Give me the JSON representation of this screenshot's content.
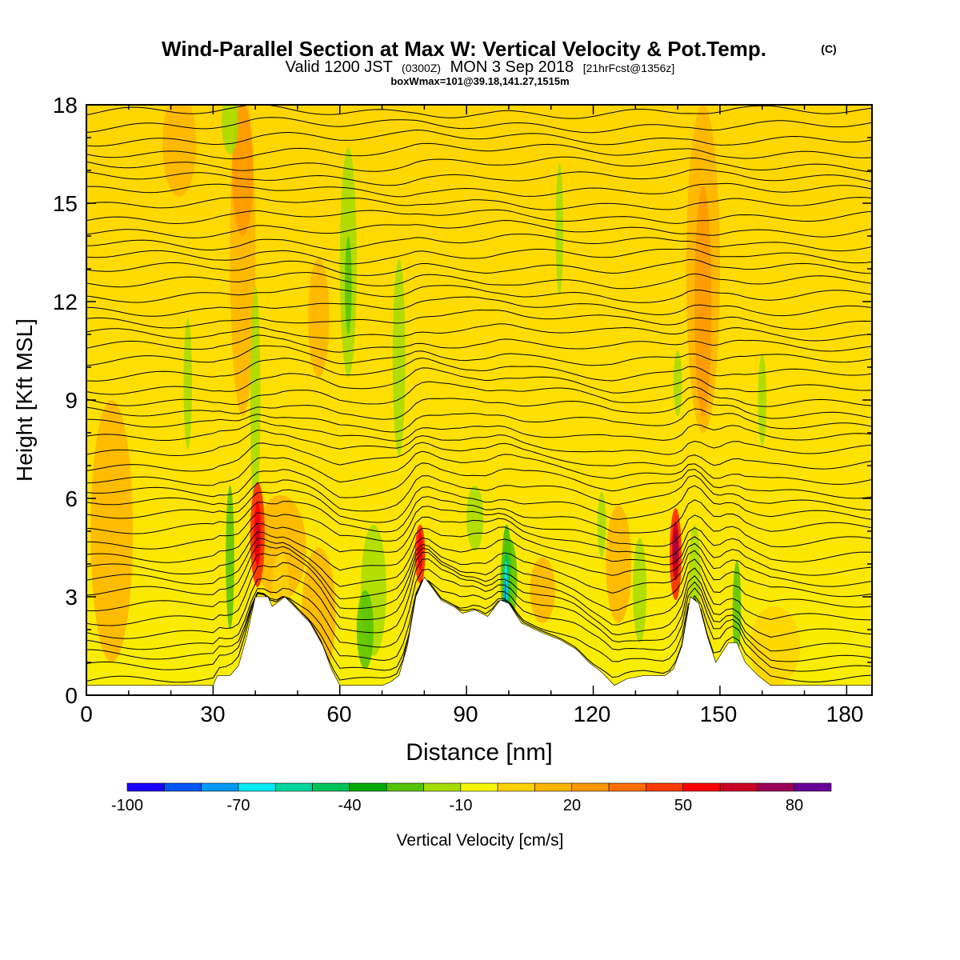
{
  "chart_data": {
    "type": "heatmap",
    "title": "Wind-Parallel Section at Max W: Vertical Velocity & Pot.Temp.",
    "title_mark": "(C)",
    "subtitle": {
      "prefix": "Valid 1200 JST",
      "utc": "(0300Z)",
      "date": "MON 3 Sep 2018",
      "fcst": "[21hrFcst@1356z]"
    },
    "boxline": "boxWmax=101@39.18,141.27,1515m",
    "xlabel": "Distance [nm]",
    "ylabel": "Height [Kft MSL]",
    "xlim": [
      0,
      186
    ],
    "ylim": [
      0,
      18
    ],
    "x_ticks": [
      "0",
      "30",
      "60",
      "90",
      "120",
      "150",
      "180"
    ],
    "y_ticks": [
      "0",
      "3",
      "6",
      "9",
      "12",
      "15",
      "18"
    ],
    "colorbar": {
      "label": "Vertical Velocity [cm/s]",
      "tick_labels": [
        "-100",
        "-70",
        "-40",
        "-10",
        "20",
        "50",
        "80"
      ],
      "colors": [
        "#1a00ff",
        "#0055f5",
        "#0099f5",
        "#00eaf5",
        "#00d59c",
        "#00c35a",
        "#00aa00",
        "#55c300",
        "#a5dc00",
        "#f5f500",
        "#ffd200",
        "#ffb400",
        "#ff9600",
        "#ff6e00",
        "#ff3c00",
        "#ff0000",
        "#cc0022",
        "#990055",
        "#660099"
      ]
    },
    "terrain_kft": [
      [
        0,
        0.3
      ],
      [
        30,
        0.3
      ],
      [
        31,
        0.6
      ],
      [
        34,
        0.6
      ],
      [
        36,
        0.9
      ],
      [
        38,
        1.8
      ],
      [
        40,
        3.0
      ],
      [
        43,
        3.0
      ],
      [
        44,
        2.7
      ],
      [
        47,
        3.0
      ],
      [
        50,
        2.6
      ],
      [
        53,
        2.2
      ],
      [
        56,
        1.5
      ],
      [
        58,
        0.8
      ],
      [
        60,
        0.3
      ],
      [
        64,
        0.3
      ],
      [
        66,
        0.3
      ],
      [
        70,
        0.3
      ],
      [
        72,
        0.4
      ],
      [
        74,
        0.6
      ],
      [
        76,
        1.5
      ],
      [
        78,
        3.0
      ],
      [
        80,
        3.6
      ],
      [
        84,
        2.9
      ],
      [
        87,
        2.7
      ],
      [
        89,
        2.5
      ],
      [
        92,
        2.6
      ],
      [
        95,
        2.4
      ],
      [
        98,
        2.9
      ],
      [
        100,
        2.8
      ],
      [
        103,
        2.2
      ],
      [
        108,
        1.9
      ],
      [
        112,
        1.7
      ],
      [
        116,
        1.4
      ],
      [
        119,
        1.0
      ],
      [
        122,
        0.7
      ],
      [
        125,
        0.3
      ],
      [
        128,
        0.5
      ],
      [
        132,
        0.6
      ],
      [
        137,
        0.6
      ],
      [
        139,
        0.8
      ],
      [
        141,
        1.5
      ],
      [
        143,
        3.0
      ],
      [
        145,
        2.8
      ],
      [
        147,
        1.8
      ],
      [
        149,
        1.0
      ],
      [
        152,
        1.6
      ],
      [
        154,
        1.6
      ],
      [
        156,
        1.0
      ],
      [
        159,
        0.6
      ],
      [
        162,
        0.3
      ],
      [
        186,
        0.3
      ]
    ],
    "wmax_cm_s": 101
  }
}
